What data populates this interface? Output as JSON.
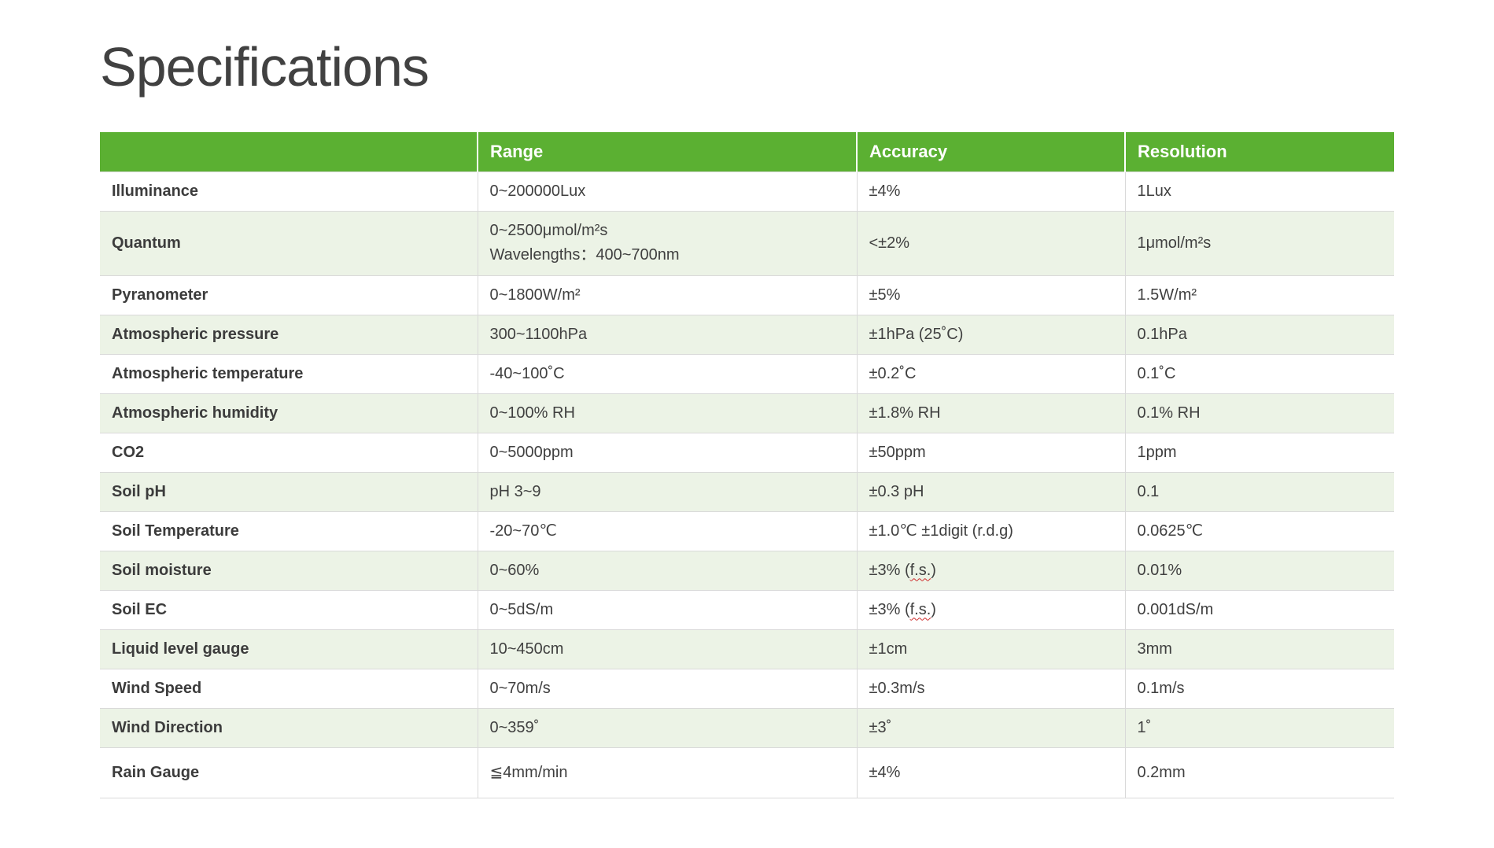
{
  "page": {
    "title": "Specifications"
  },
  "colors": {
    "header_bg": "#5bb032",
    "header_text": "#ffffff",
    "row_shaded_bg": "#ecf3e6",
    "border": "#d9d9d9",
    "text": "#3f3f3f",
    "spellcheck_underline": "#cf2e2e"
  },
  "table": {
    "columns": [
      "",
      "Range",
      "Accuracy",
      "Resolution"
    ],
    "rows": [
      {
        "name": "Illuminance",
        "range": "0~200000Lux",
        "accuracy": "±4%",
        "resolution": "1Lux"
      },
      {
        "name": "Quantum",
        "range": [
          "0~2500μmol/m²s",
          {
            "br": true
          },
          "Wavelengths：400~700nm"
        ],
        "accuracy": "<±2%",
        "resolution": "1μmol/m²s"
      },
      {
        "name": "Pyranometer",
        "range": "0~1800W/m²",
        "accuracy": "±5%",
        "resolution": "1.5W/m²"
      },
      {
        "name": "Atmospheric pressure",
        "range": "300~1100hPa",
        "accuracy": "±1hPa (25˚C)",
        "resolution": "0.1hPa"
      },
      {
        "name": "Atmospheric temperature",
        "range": "-40~100˚C",
        "accuracy": "±0.2˚C",
        "resolution": "0.1˚C"
      },
      {
        "name": "Atmospheric humidity",
        "range": "0~100% RH",
        "accuracy": "±1.8% RH",
        "resolution": "0.1% RH"
      },
      {
        "name": "CO2",
        "range": "0~5000ppm",
        "accuracy": "±50ppm",
        "resolution": "1ppm"
      },
      {
        "name": "Soil pH",
        "range": "pH 3~9",
        "accuracy": "±0.3 pH",
        "resolution": "0.1"
      },
      {
        "name": "Soil Temperature",
        "range": "-20~70℃",
        "accuracy": "±1.0℃ ±1digit (r.d.g)",
        "resolution": "0.0625℃"
      },
      {
        "name": "Soil moisture",
        "range": "0~60%",
        "accuracy": [
          "±3% (",
          {
            "t": "f.s.",
            "wavy": true
          },
          ")"
        ],
        "resolution": "0.01%"
      },
      {
        "name": "Soil EC",
        "range": "0~5dS/m",
        "accuracy": [
          "±3% (",
          {
            "t": "f.s.",
            "wavy": true
          },
          ")"
        ],
        "resolution": "0.001dS/m"
      },
      {
        "name": "Liquid level gauge",
        "range": "10~450cm",
        "accuracy": "±1cm",
        "resolution": "3mm"
      },
      {
        "name": "Wind Speed",
        "range": "0~70m/s",
        "accuracy": "±0.3m/s",
        "resolution": "0.1m/s"
      },
      {
        "name": "Wind Direction",
        "range": "0~359˚",
        "accuracy": "±3˚",
        "resolution": "1˚"
      },
      {
        "name": "Rain Gauge",
        "range": "≦4mm/min",
        "accuracy": "±4%",
        "resolution": "0.2mm"
      }
    ]
  }
}
